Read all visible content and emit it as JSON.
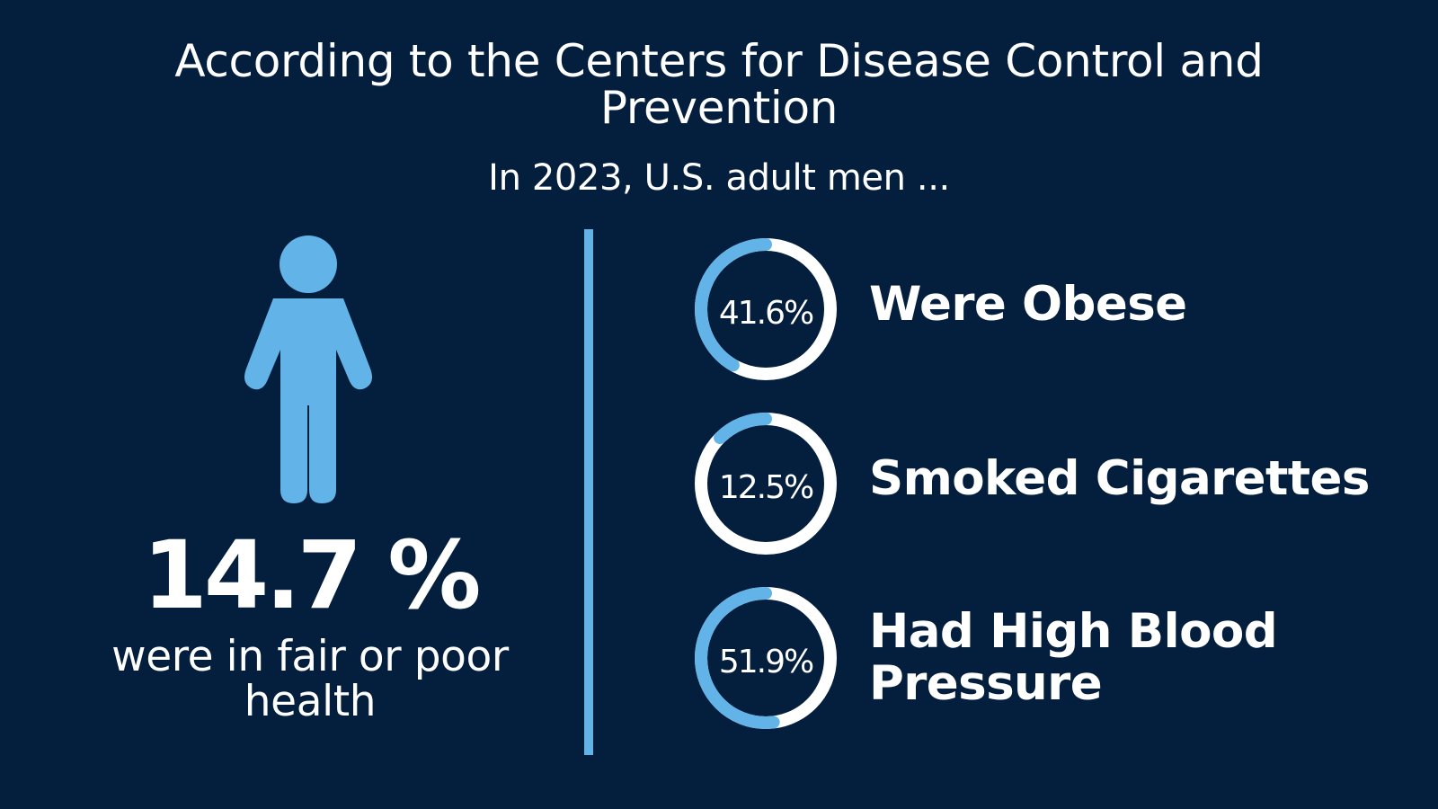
{
  "chart_data": {
    "type": "pie",
    "title": "According to the Centers for Disease Control and Prevention",
    "subtitle": "In 2023, U.S. adult men ...",
    "categories": [
      "Were Obese",
      "Smoked Cigarettes",
      "Had High Blood Pressure"
    ],
    "values": [
      41.6,
      12.5,
      51.9
    ],
    "value_labels": [
      "41.6%",
      "12.5%",
      "51.9%"
    ],
    "unit": "%",
    "colors": {
      "background": "#041e3d",
      "accent": "#62b4e8",
      "remainder": "#ffffff",
      "text": "#ffffff"
    }
  },
  "highlight": {
    "value": 14.7,
    "value_label": "14.7 %",
    "caption": "were in fair or poor health",
    "icon": "person-icon"
  }
}
